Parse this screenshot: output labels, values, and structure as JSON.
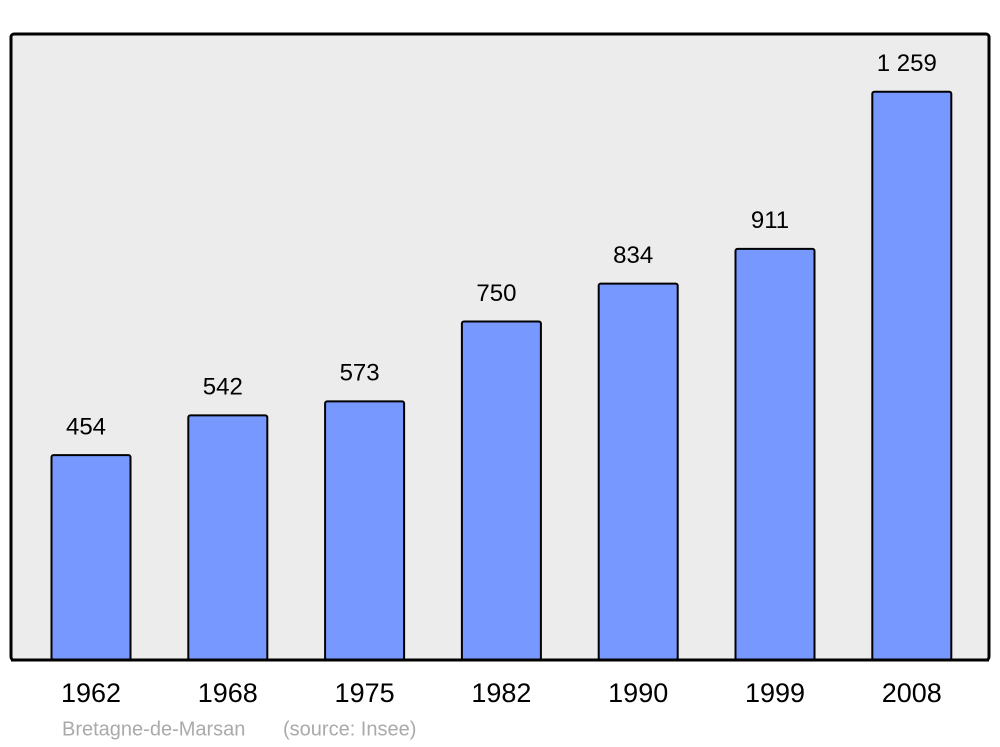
{
  "chart_data": {
    "type": "bar",
    "categories": [
      "1962",
      "1968",
      "1975",
      "1982",
      "1990",
      "1999",
      "2008"
    ],
    "values": [
      454,
      542,
      573,
      750,
      834,
      911,
      1259
    ],
    "value_labels": [
      "454",
      "542",
      "573",
      "750",
      "834",
      "911",
      "1 259"
    ],
    "color": "#7799ff",
    "ylim": [
      0,
      1387
    ],
    "caption": "Bretagne-de-Marsan",
    "source": "(source: Insee)"
  }
}
